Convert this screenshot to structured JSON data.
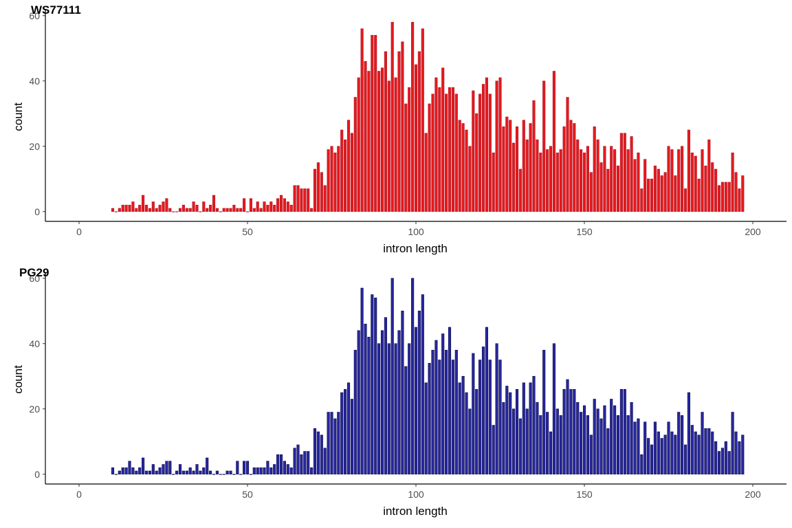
{
  "chart_data": [
    {
      "type": "bar",
      "title": "WS77111",
      "xlabel": "intron length",
      "ylabel": "count",
      "xlim": [
        -10,
        210
      ],
      "ylim": [
        -3,
        61
      ],
      "xticks": [
        0,
        50,
        100,
        150,
        200
      ],
      "yticks": [
        0,
        20,
        40,
        60
      ],
      "grid": false,
      "colors": {
        "fill": "#e41a1c",
        "stroke": "#b2182b"
      },
      "x_start": 10,
      "values": [
        1,
        0,
        1,
        2,
        2,
        2,
        3,
        1,
        2,
        5,
        2,
        1,
        3,
        1,
        2,
        3,
        4,
        1,
        0,
        0,
        1,
        2,
        1,
        1,
        3,
        2,
        0,
        3,
        1,
        2,
        5,
        1,
        0,
        1,
        1,
        1,
        2,
        1,
        1,
        4,
        0,
        4,
        1,
        3,
        1,
        3,
        2,
        3,
        2,
        4,
        5,
        4,
        3,
        2,
        8,
        8,
        7,
        7,
        7,
        1,
        13,
        15,
        12,
        8,
        19,
        20,
        18,
        20,
        25,
        22,
        28,
        24,
        35,
        41,
        56,
        46,
        43,
        54,
        54,
        43,
        44,
        49,
        40,
        58,
        41,
        49,
        52,
        33,
        38,
        58,
        45,
        49,
        56,
        24,
        33,
        36,
        41,
        38,
        44,
        36,
        38,
        38,
        36,
        28,
        27,
        25,
        20,
        37,
        30,
        36,
        39,
        41,
        36,
        18,
        40,
        41,
        26,
        29,
        28,
        21,
        26,
        13,
        28,
        22,
        27,
        34,
        22,
        18,
        40,
        19,
        20,
        43,
        18,
        19,
        26,
        35,
        28,
        27,
        22,
        19,
        18,
        20,
        12,
        26,
        22,
        15,
        20,
        13,
        20,
        19,
        14,
        24,
        24,
        19,
        23,
        16,
        18,
        7,
        16,
        10,
        10,
        14,
        13,
        11,
        12,
        20,
        19,
        11,
        19,
        20,
        7,
        25,
        18,
        17,
        10,
        19,
        14,
        22,
        15,
        13,
        8,
        9,
        9,
        9,
        18,
        12,
        7,
        11
      ],
      "x_values_note": ""
    },
    {
      "type": "bar",
      "title": "PG29",
      "xlabel": "intron length",
      "ylabel": "count",
      "xlim": [
        -10,
        210
      ],
      "ylim": [
        -3,
        61
      ],
      "xticks": [
        0,
        50,
        100,
        150,
        200
      ],
      "yticks": [
        0,
        20,
        40,
        60
      ],
      "grid": false,
      "colors": {
        "fill": "#27279b",
        "stroke": "#0a0a55"
      },
      "x_start": 10,
      "values": [
        2,
        0,
        1,
        2,
        2,
        4,
        2,
        1,
        2,
        5,
        1,
        1,
        3,
        1,
        2,
        3,
        4,
        4,
        0,
        1,
        3,
        1,
        1,
        2,
        1,
        3,
        1,
        2,
        5,
        1,
        0,
        1,
        0,
        0,
        1,
        1,
        0,
        4,
        0,
        4,
        4,
        0,
        2,
        2,
        2,
        2,
        4,
        2,
        3,
        6,
        6,
        4,
        3,
        2,
        8,
        9,
        6,
        7,
        7,
        2,
        14,
        13,
        12,
        8,
        19,
        19,
        17,
        19,
        25,
        26,
        28,
        23,
        38,
        44,
        57,
        46,
        42,
        55,
        54,
        40,
        44,
        48,
        40,
        60,
        40,
        44,
        50,
        33,
        40,
        60,
        45,
        50,
        55,
        28,
        34,
        38,
        41,
        35,
        43,
        38,
        45,
        35,
        38,
        28,
        30,
        25,
        20,
        37,
        26,
        35,
        39,
        45,
        35,
        15,
        40,
        35,
        22,
        27,
        25,
        20,
        26,
        17,
        28,
        20,
        28,
        30,
        22,
        18,
        38,
        19,
        13,
        40,
        20,
        18,
        26,
        29,
        26,
        26,
        22,
        19,
        21,
        18,
        12,
        23,
        20,
        17,
        21,
        14,
        23,
        21,
        18,
        26,
        26,
        18,
        22,
        16,
        17,
        6,
        16,
        11,
        9,
        16,
        13,
        11,
        12,
        16,
        13,
        12,
        19,
        18,
        9,
        25,
        15,
        13,
        12,
        19,
        14,
        14,
        13,
        10,
        7,
        8,
        10,
        7,
        19,
        13,
        10,
        12
      ]
    }
  ]
}
